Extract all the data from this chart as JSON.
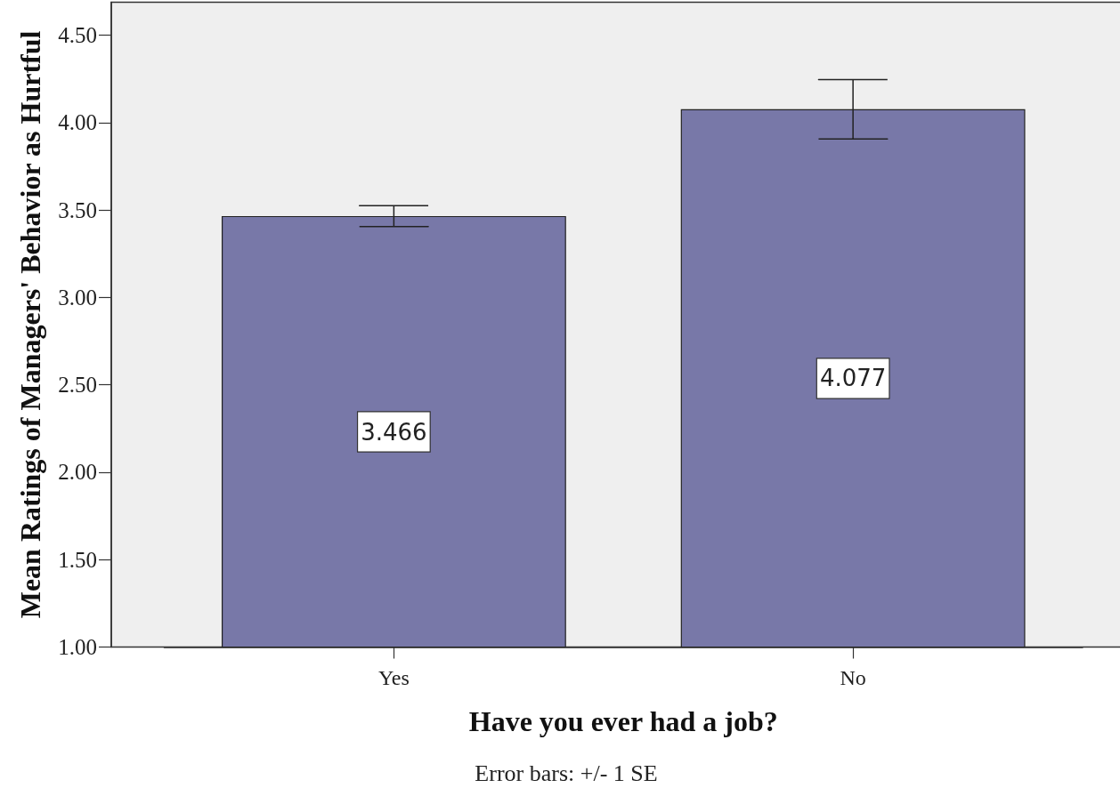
{
  "chart_data": {
    "type": "bar",
    "xlabel": "Have you ever had a job?",
    "ylabel": "Mean Ratings of Managers' Behavior as Hurtful",
    "categories": [
      "Yes",
      "No"
    ],
    "values": [
      3.466,
      4.077
    ],
    "errors": [
      0.06,
      0.17
    ],
    "color": "#7878a8",
    "data_labels": true,
    "ylim": [
      1,
      4.69
    ],
    "yticks": [
      {
        "value": 1,
        "label": "1.00"
      },
      {
        "value": 1.5,
        "label": "1.50"
      },
      {
        "value": 2,
        "label": "2.00"
      },
      {
        "value": 2.5,
        "label": "2.50"
      },
      {
        "value": 3,
        "label": "3.00"
      },
      {
        "value": 3.5,
        "label": "3.50"
      },
      {
        "value": 4,
        "label": "4.00"
      },
      {
        "value": 4.5,
        "label": "4.50"
      }
    ],
    "annotations": [
      "Error bars: +/- 1 SE"
    ]
  }
}
